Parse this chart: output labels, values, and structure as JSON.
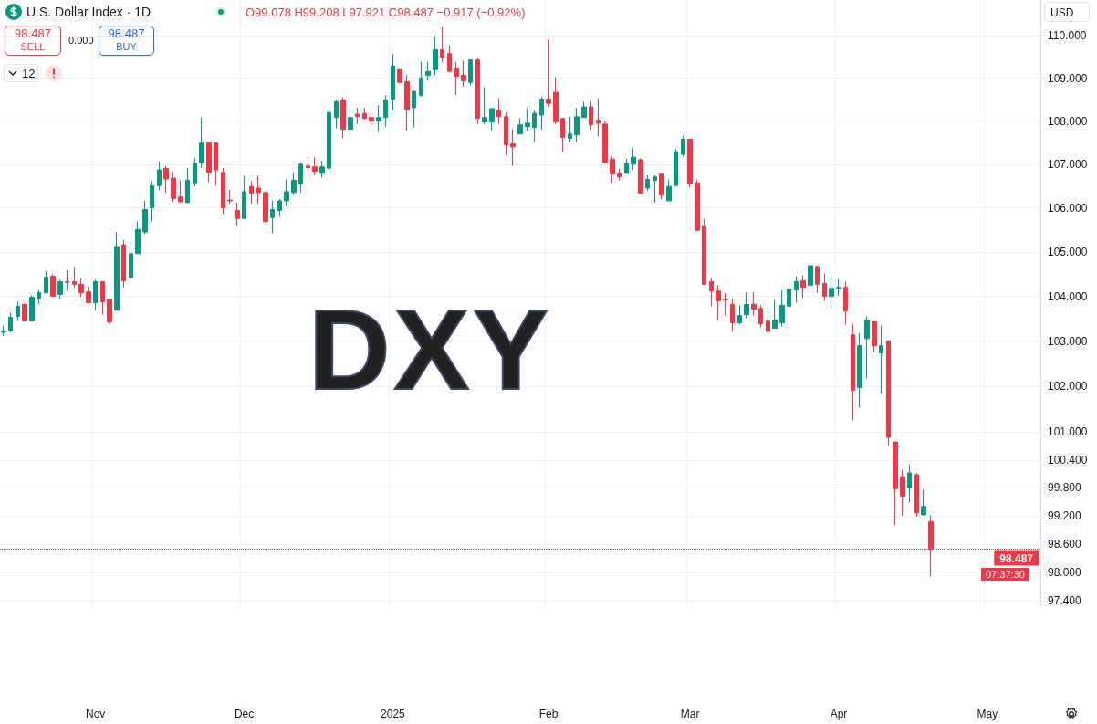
{
  "chart_data": {
    "type": "candlestick",
    "title": "U.S. Dollar Index · 1D",
    "subtitle": "O99.078 H99.208 L97.921 C98.487 −0.917 (−0.92%)",
    "annotations": [
      "DXY",
      "USD",
      "98.487",
      "SELL",
      "0.000",
      "98.487",
      "BUY",
      "12",
      "07:37:30"
    ],
    "categories": [
      null,
      null,
      null,
      null,
      null,
      null,
      null,
      null,
      null,
      null,
      null,
      null,
      null,
      "Nov",
      null,
      null,
      null,
      null,
      null,
      null,
      null,
      null,
      null,
      null,
      null,
      null,
      null,
      null,
      null,
      null,
      null,
      null,
      null,
      null,
      "Dec",
      null,
      null,
      null,
      null,
      null,
      null,
      null,
      null,
      null,
      null,
      null,
      null,
      null,
      null,
      null,
      null,
      null,
      null,
      null,
      null,
      "2025",
      null,
      null,
      null,
      null,
      null,
      null,
      null,
      null,
      null,
      null,
      null,
      null,
      null,
      null,
      null,
      null,
      null,
      null,
      null,
      null,
      null,
      "Feb",
      null,
      null,
      null,
      null,
      null,
      null,
      null,
      null,
      null,
      null,
      null,
      null,
      null,
      null,
      null,
      null,
      null,
      null,
      null,
      "Mar",
      null,
      null,
      null,
      null,
      null,
      null,
      null,
      null,
      null,
      null,
      null,
      null,
      null,
      null,
      null,
      null,
      null,
      null,
      null,
      null,
      "Apr",
      null,
      null,
      null,
      null,
      null,
      null,
      null,
      null,
      null,
      null,
      null,
      null,
      null,
      null,
      null,
      null,
      null,
      null,
      null,
      null,
      "May",
      null,
      null,
      null,
      null,
      null,
      null,
      null
    ],
    "ohlc": [
      [
        103.2,
        103.35,
        103.12,
        103.22
      ],
      [
        103.24,
        103.63,
        103.2,
        103.53
      ],
      [
        103.55,
        103.88,
        103.45,
        103.78
      ],
      [
        103.82,
        103.83,
        103.43,
        103.45
      ],
      [
        103.45,
        104.02,
        103.43,
        103.98
      ],
      [
        103.96,
        104.14,
        103.82,
        104.08
      ],
      [
        104.08,
        104.57,
        104.08,
        104.43
      ],
      [
        104.45,
        104.5,
        104.0,
        104.0
      ],
      [
        104.04,
        104.37,
        103.94,
        104.33
      ],
      [
        104.33,
        104.59,
        104.12,
        104.31
      ],
      [
        104.33,
        104.65,
        104.2,
        104.27
      ],
      [
        104.27,
        104.41,
        103.98,
        104.08
      ],
      [
        104.1,
        104.22,
        103.84,
        103.86
      ],
      [
        103.86,
        104.37,
        103.69,
        104.33
      ],
      [
        104.33,
        104.33,
        103.59,
        103.88
      ],
      [
        103.92,
        103.94,
        103.39,
        103.43
      ],
      [
        103.69,
        105.45,
        103.69,
        105.12
      ],
      [
        105.16,
        105.27,
        104.2,
        104.35
      ],
      [
        104.43,
        105.22,
        104.35,
        104.96
      ],
      [
        104.96,
        105.69,
        104.96,
        105.51
      ],
      [
        105.45,
        106.16,
        105.4,
        105.96
      ],
      [
        106.0,
        106.61,
        105.69,
        106.51
      ],
      [
        106.51,
        107.06,
        106.4,
        106.87
      ],
      [
        106.9,
        106.96,
        106.34,
        106.66
      ],
      [
        106.68,
        106.83,
        106.14,
        106.21
      ],
      [
        106.25,
        106.63,
        106.12,
        106.14
      ],
      [
        106.12,
        106.91,
        106.12,
        106.63
      ],
      [
        106.57,
        107.14,
        106.49,
        107.02
      ],
      [
        107.04,
        108.08,
        106.91,
        107.49
      ],
      [
        107.49,
        107.49,
        106.59,
        106.81
      ],
      [
        107.49,
        107.51,
        106.51,
        106.87
      ],
      [
        106.81,
        106.91,
        105.86,
        106.0
      ],
      [
        106.18,
        106.42,
        106.1,
        106.16
      ],
      [
        105.94,
        106.12,
        105.59,
        105.76
      ],
      [
        105.76,
        106.73,
        105.76,
        106.37
      ],
      [
        106.49,
        106.61,
        106.1,
        106.33
      ],
      [
        106.45,
        106.73,
        106.1,
        106.35
      ],
      [
        106.35,
        106.37,
        105.67,
        105.69
      ],
      [
        105.78,
        106.16,
        105.43,
        105.96
      ],
      [
        105.94,
        106.2,
        105.8,
        106.16
      ],
      [
        106.16,
        106.65,
        106.04,
        106.37
      ],
      [
        106.35,
        106.81,
        106.29,
        106.63
      ],
      [
        106.55,
        107.04,
        106.35,
        107.0
      ],
      [
        106.96,
        107.18,
        106.71,
        106.92
      ],
      [
        106.94,
        107.16,
        106.75,
        106.84
      ],
      [
        106.79,
        107.08,
        106.69,
        106.94
      ],
      [
        106.91,
        108.27,
        106.81,
        108.2
      ],
      [
        108.08,
        108.49,
        107.83,
        108.45
      ],
      [
        108.49,
        108.55,
        107.6,
        107.81
      ],
      [
        107.81,
        108.29,
        107.68,
        108.08
      ],
      [
        108.16,
        108.31,
        107.93,
        108.1
      ],
      [
        108.18,
        108.31,
        108.04,
        108.06
      ],
      [
        108.08,
        108.2,
        107.87,
        108.0
      ],
      [
        108.0,
        108.37,
        107.74,
        108.08
      ],
      [
        108.08,
        108.6,
        107.87,
        108.49
      ],
      [
        108.51,
        109.57,
        108.27,
        109.29
      ],
      [
        109.2,
        109.22,
        108.9,
        108.9
      ],
      [
        108.92,
        109.07,
        107.77,
        108.27
      ],
      [
        108.31,
        108.71,
        107.85,
        108.69
      ],
      [
        108.6,
        109.39,
        108.57,
        109.0
      ],
      [
        109.07,
        109.39,
        108.94,
        109.16
      ],
      [
        109.2,
        110.0,
        109.07,
        109.67
      ],
      [
        109.67,
        110.2,
        109.37,
        109.49
      ],
      [
        109.58,
        109.78,
        109.16,
        109.16
      ],
      [
        109.22,
        109.39,
        108.6,
        109.04
      ],
      [
        109.07,
        109.41,
        108.81,
        108.94
      ],
      [
        108.9,
        109.43,
        108.83,
        109.43
      ],
      [
        109.43,
        109.47,
        107.93,
        108.06
      ],
      [
        107.98,
        108.79,
        107.93,
        108.08
      ],
      [
        107.98,
        108.29,
        107.77,
        108.29
      ],
      [
        108.25,
        108.53,
        107.93,
        108.1
      ],
      [
        108.1,
        108.2,
        107.21,
        107.45
      ],
      [
        107.47,
        107.81,
        106.96,
        107.4
      ],
      [
        107.7,
        108.06,
        107.7,
        107.91
      ],
      [
        107.87,
        108.29,
        107.77,
        107.95
      ],
      [
        107.85,
        108.25,
        107.51,
        108.18
      ],
      [
        108.14,
        108.57,
        107.79,
        108.51
      ],
      [
        108.51,
        109.91,
        108.33,
        108.41
      ],
      [
        108.67,
        109.02,
        107.93,
        107.98
      ],
      [
        108.06,
        108.06,
        107.29,
        107.62
      ],
      [
        107.6,
        108.1,
        107.51,
        107.7
      ],
      [
        107.68,
        108.31,
        107.51,
        108.1
      ],
      [
        108.08,
        108.45,
        108.08,
        108.33
      ],
      [
        108.33,
        108.47,
        107.79,
        107.91
      ],
      [
        108.02,
        108.53,
        107.64,
        107.95
      ],
      [
        107.93,
        108.0,
        107.02,
        107.04
      ],
      [
        107.12,
        107.18,
        106.57,
        106.77
      ],
      [
        106.79,
        106.89,
        106.63,
        106.71
      ],
      [
        106.79,
        107.12,
        106.79,
        107.02
      ],
      [
        107.0,
        107.37,
        106.87,
        107.16
      ],
      [
        107.1,
        107.14,
        106.33,
        106.33
      ],
      [
        106.45,
        106.75,
        106.39,
        106.65
      ],
      [
        106.63,
        106.75,
        106.12,
        106.71
      ],
      [
        106.77,
        106.79,
        106.2,
        106.29
      ],
      [
        106.16,
        106.65,
        106.16,
        106.49
      ],
      [
        106.51,
        107.35,
        106.51,
        107.29
      ],
      [
        107.23,
        107.66,
        107.18,
        107.58
      ],
      [
        107.58,
        107.58,
        106.47,
        106.55
      ],
      [
        106.57,
        106.65,
        105.49,
        105.49
      ],
      [
        105.59,
        105.76,
        104.27,
        104.27
      ],
      [
        104.33,
        104.41,
        103.78,
        104.12
      ],
      [
        104.12,
        104.25,
        103.47,
        103.9
      ],
      [
        103.94,
        104.08,
        103.57,
        103.92
      ],
      [
        103.82,
        103.94,
        103.22,
        103.41
      ],
      [
        103.41,
        103.8,
        103.37,
        103.57
      ],
      [
        103.59,
        104.08,
        103.51,
        103.82
      ],
      [
        103.82,
        104.1,
        103.57,
        103.71
      ],
      [
        103.73,
        103.8,
        103.31,
        103.39
      ],
      [
        103.45,
        103.67,
        103.2,
        103.22
      ],
      [
        103.29,
        103.92,
        103.29,
        103.47
      ],
      [
        103.41,
        104.14,
        103.33,
        103.8
      ],
      [
        103.78,
        104.22,
        103.78,
        104.16
      ],
      [
        104.14,
        104.45,
        103.86,
        104.33
      ],
      [
        104.35,
        104.47,
        103.96,
        104.2
      ],
      [
        104.25,
        104.71,
        104.2,
        104.69
      ],
      [
        104.67,
        104.69,
        104.08,
        104.27
      ],
      [
        104.29,
        104.51,
        103.9,
        104.0
      ],
      [
        104.0,
        104.41,
        103.75,
        104.18
      ],
      [
        104.18,
        104.39,
        104.02,
        104.2
      ],
      [
        104.2,
        104.33,
        103.37,
        103.67
      ],
      [
        103.14,
        103.39,
        101.26,
        101.92
      ],
      [
        101.98,
        103.18,
        101.54,
        102.9
      ],
      [
        103.06,
        103.55,
        102.18,
        103.47
      ],
      [
        103.43,
        103.45,
        102.76,
        102.9
      ],
      [
        102.74,
        103.35,
        101.84,
        102.9
      ],
      [
        103.0,
        103.02,
        100.72,
        100.89
      ],
      [
        100.79,
        100.79,
        99.0,
        99.78
      ],
      [
        100.04,
        100.18,
        99.2,
        99.62
      ],
      [
        99.8,
        100.3,
        99.48,
        100.12
      ],
      [
        100.08,
        100.12,
        99.18,
        99.26
      ],
      [
        99.22,
        99.76,
        99.22,
        99.4
      ],
      [
        99.078,
        99.208,
        97.921,
        98.487
      ],
      null,
      null,
      null,
      null,
      null,
      null,
      null,
      null,
      null,
      null,
      null,
      null,
      null,
      null,
      null
    ],
    "colors": [
      "#089981",
      "#089981",
      "#089981",
      "#f23645",
      "#089981",
      "#089981",
      "#089981",
      "#f23645",
      "#089981",
      "#f23645",
      "#f23645",
      "#f23645",
      "#f23645",
      "#089981",
      "#f23645",
      "#f23645",
      "#089981",
      "#f23645",
      "#089981",
      "#089981",
      "#089981",
      "#089981",
      "#089981",
      "#f23645",
      "#f23645",
      "#f23645",
      "#089981",
      "#089981",
      "#089981",
      "#f23645",
      "#f23645",
      "#f23645",
      "#f23645",
      "#f23645",
      "#089981",
      "#f23645",
      "#f23645",
      "#f23645",
      "#089981",
      "#089981",
      "#089981",
      "#089981",
      "#089981",
      "#f23645",
      "#f23645",
      "#089981",
      "#089981",
      "#089981",
      "#f23645",
      "#089981",
      "#f23645",
      "#f23645",
      "#f23645",
      "#089981",
      "#089981",
      "#089981",
      "#f23645",
      "#f23645",
      "#089981",
      "#089981",
      "#089981",
      "#089981",
      "#f23645",
      "#f23645",
      "#f23645",
      "#f23645",
      "#089981",
      "#f23645",
      "#089981",
      "#089981",
      "#f23645",
      "#f23645",
      "#f23645",
      "#089981",
      "#089981",
      "#089981",
      "#089981",
      "#f23645",
      "#f23645",
      "#f23645",
      "#089981",
      "#089981",
      "#089981",
      "#f23645",
      "#f23645",
      "#f23645",
      "#f23645",
      "#f23645",
      "#089981",
      "#089981",
      "#f23645",
      "#089981",
      "#089981",
      "#f23645",
      "#089981",
      "#089981",
      "#089981",
      "#f23645",
      "#f23645",
      "#f23645",
      "#f23645",
      "#f23645",
      "#f23645",
      "#f23645",
      "#089981",
      "#089981",
      "#f23645",
      "#f23645",
      "#f23645",
      "#089981",
      "#089981",
      "#089981",
      "#089981",
      "#f23645",
      "#089981",
      "#f23645",
      "#f23645",
      "#089981",
      "#089981",
      "#f23645",
      "#f23645",
      "#089981",
      "#089981",
      "#f23645",
      "#089981",
      "#f23645",
      "#f23645",
      "#f23645",
      "#089981",
      "#f23645",
      "#089981",
      "#f23645",
      null,
      null,
      null,
      null,
      null,
      null,
      null,
      null,
      null,
      null,
      null,
      null,
      null,
      null,
      null
    ],
    "ylim": [
      97.25,
      110.85
    ],
    "log": true,
    "yticks": [
      {
        "value": 110,
        "label": "110.000"
      },
      {
        "value": 109,
        "label": "109.000"
      },
      {
        "value": 108,
        "label": "108.000"
      },
      {
        "value": 107,
        "label": "107.000"
      },
      {
        "value": 106,
        "label": "106.000"
      },
      {
        "value": 105,
        "label": "105.000"
      },
      {
        "value": 104,
        "label": "104.000"
      },
      {
        "value": 103,
        "label": "103.000"
      },
      {
        "value": 102,
        "label": "102.000"
      },
      {
        "value": 101,
        "label": "101.000"
      },
      {
        "value": 100.4,
        "label": "100.400"
      },
      {
        "value": 99.8,
        "label": "99.800"
      },
      {
        "value": 99.2,
        "label": "99.200"
      },
      {
        "value": 98.6,
        "label": "98.600"
      },
      {
        "value": 98.0,
        "label": "98.000"
      },
      {
        "value": 97.4,
        "label": "97.400"
      }
    ],
    "grid": true,
    "ref_lines": [
      {
        "axis": "y",
        "value": 98.487,
        "label": "98.487",
        "color": "#f23645",
        "line_style": "dotted"
      }
    ]
  }
}
